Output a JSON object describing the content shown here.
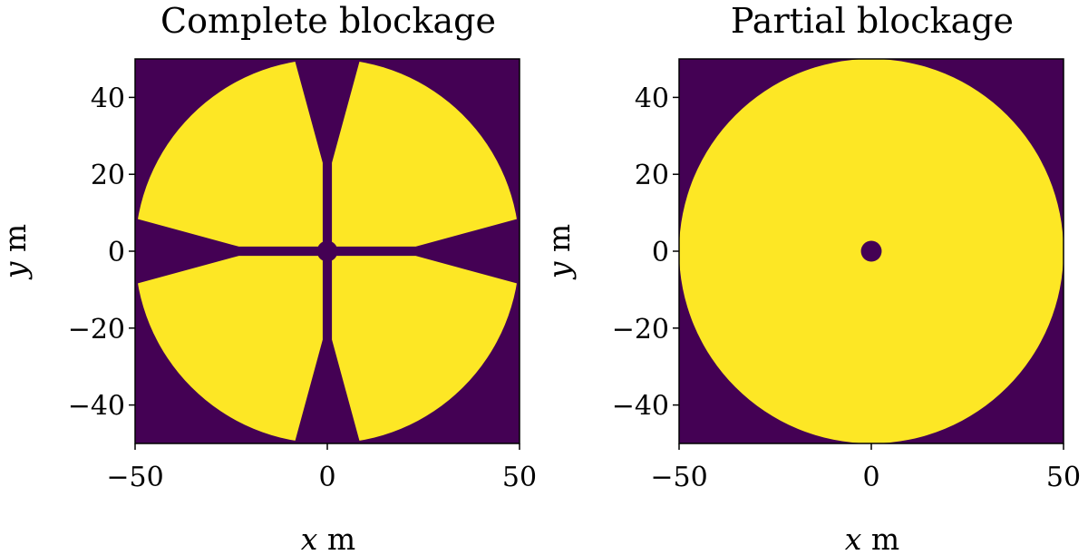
{
  "chart_data": [
    {
      "type": "heatmap",
      "title": "Complete blockage",
      "xlabel": {
        "var": "x",
        "unit": " m"
      },
      "ylabel": {
        "var": "y",
        "unit": " m"
      },
      "xlim": [
        -50,
        50
      ],
      "ylim": [
        -50,
        50
      ],
      "xticks": [
        -50,
        0,
        50
      ],
      "yticks": [
        40,
        20,
        0,
        -20,
        -40
      ],
      "xtick_labels": [
        "−50",
        "0",
        "50"
      ],
      "ytick_labels": [
        "40",
        "20",
        "0",
        "−20",
        "−40"
      ],
      "grid": false,
      "colors": {
        "background": "#440154",
        "aperture": "#fde725"
      },
      "aperture": {
        "outer_radius": 50,
        "central_obstruction_radius": 2.7,
        "strut_half_width": 1.2,
        "strut_length": 23,
        "wedge_half_width_at_rim": 10,
        "wedge_directions_deg": [
          0,
          90,
          180,
          270
        ]
      }
    },
    {
      "type": "heatmap",
      "title": "Partial blockage",
      "xlabel": {
        "var": "x",
        "unit": " m"
      },
      "ylabel": {
        "var": "y",
        "unit": " m"
      },
      "xlim": [
        -50,
        50
      ],
      "ylim": [
        -50,
        50
      ],
      "xticks": [
        -50,
        0,
        50
      ],
      "yticks": [
        40,
        20,
        0,
        -20,
        -40
      ],
      "xtick_labels": [
        "−50",
        "0",
        "50"
      ],
      "ytick_labels": [
        "40",
        "20",
        "0",
        "−20",
        "−40"
      ],
      "grid": false,
      "colors": {
        "background": "#440154",
        "aperture": "#fde725"
      },
      "aperture": {
        "outer_radius": 50,
        "central_obstruction_radius": 2.7
      }
    }
  ]
}
